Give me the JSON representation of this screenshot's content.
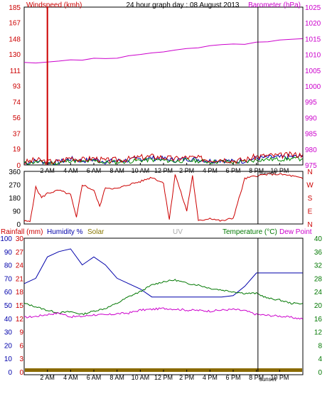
{
  "title": "24 hour graph day : 08 August 2013",
  "x_ticks": [
    "2 AM",
    "4 AM",
    "6 AM",
    "8 AM",
    "10 AM",
    "12 PM",
    "2 PM",
    "4 PM",
    "6 PM",
    "8 PM",
    "10 PM"
  ],
  "sunset_label": "sunset",
  "colors": {
    "wind": "#cc0000",
    "wind_gust": "#0000aa",
    "wind_avg": "#008800",
    "barometer": "#cc00cc",
    "direction": "#cc0000",
    "rain": "#cc0000",
    "humidity": "#0000aa",
    "solar": "#887700",
    "uv": "#aaaaaa",
    "temperature": "#007700",
    "dewpoint": "#cc00cc",
    "rain_bar": "#8a6a00"
  },
  "chart_data": [
    {
      "type": "line",
      "left_label": "Windspeed (kmh)",
      "right_label": "Barometer (hPa)",
      "left_ticks": [
        "185",
        "167",
        "148",
        "130",
        "111",
        "93",
        "74",
        "56",
        "37",
        "19",
        "0"
      ],
      "right_ticks": [
        "1025",
        "1020",
        "1015",
        "1010",
        "1005",
        "1000",
        "995",
        "990",
        "985",
        "980",
        "975"
      ],
      "ylim_left": [
        0,
        185
      ],
      "ylim_right": [
        975,
        1025
      ],
      "x": [
        "00:00",
        "01:00",
        "02:00",
        "03:00",
        "04:00",
        "05:00",
        "06:00",
        "07:00",
        "08:00",
        "09:00",
        "10:00",
        "11:00",
        "12:00",
        "13:00",
        "14:00",
        "15:00",
        "16:00",
        "17:00",
        "18:00",
        "19:00",
        "20:00",
        "21:00",
        "22:00",
        "23:00",
        "23:59"
      ],
      "series": [
        {
          "name": "Windspeed",
          "values": [
            3,
            6,
            4,
            4,
            9,
            6,
            8,
            5,
            6,
            7,
            9,
            10,
            9,
            7,
            9,
            8,
            6,
            7,
            5,
            6,
            10,
            11,
            11,
            12,
            12
          ]
        },
        {
          "name": "Barometer",
          "values": [
            1007.5,
            1007.3,
            1007.6,
            1007.9,
            1008.3,
            1008.2,
            1008.8,
            1008.7,
            1008.8,
            1009.6,
            1010.0,
            1010.5,
            1010.8,
            1011.4,
            1011.9,
            1012.1,
            1012.8,
            1013.1,
            1013.3,
            1013.2,
            1013.9,
            1014.0,
            1014.6,
            1014.8,
            1015.0
          ]
        }
      ],
      "gust_spike": {
        "x": "02:00",
        "y": 185
      }
    },
    {
      "type": "line",
      "left_ticks": [
        "360",
        "270",
        "180",
        "90",
        "0"
      ],
      "right_ticks": [
        "N",
        "W",
        "S",
        "E",
        "N"
      ],
      "ylim": [
        0,
        360
      ],
      "x": [
        "00:00",
        "00:30",
        "01:00",
        "01:30",
        "02:00",
        "03:00",
        "04:00",
        "04:30",
        "05:00",
        "06:00",
        "06:30",
        "07:00",
        "08:00",
        "09:00",
        "10:00",
        "11:00",
        "12:00",
        "12:30",
        "13:00",
        "14:00",
        "14:30",
        "15:00",
        "16:00",
        "17:00",
        "18:00",
        "19:00",
        "20:00",
        "21:00",
        "22:00",
        "23:00",
        "23:59"
      ],
      "series": [
        {
          "name": "Wind direction",
          "values": [
            20,
            15,
            250,
            180,
            210,
            230,
            200,
            40,
            270,
            230,
            120,
            250,
            240,
            270,
            290,
            320,
            280,
            30,
            340,
            90,
            330,
            20,
            40,
            20,
            40,
            310,
            330,
            340,
            340,
            330,
            310
          ]
        }
      ]
    },
    {
      "type": "line",
      "left_label_1": "Rainfall (mm)",
      "left_label_2": "Humidity %",
      "solar_label": "Solar",
      "uv_label": "UV",
      "right_label": "Temperature (°C)",
      "dew_label": "Dew Point",
      "rain_ticks": [
        "30",
        "27",
        "24",
        "21",
        "18",
        "15",
        "12",
        "9",
        "6",
        "3",
        "0"
      ],
      "humidity_ticks": [
        "100",
        "90",
        "80",
        "70",
        "60",
        "50",
        "40",
        "30",
        "20",
        "10",
        "0"
      ],
      "temp_ticks": [
        "40",
        "36",
        "32",
        "28",
        "24",
        "20",
        "16",
        "12",
        "8",
        "4",
        "0"
      ],
      "ylim_humidity": [
        0,
        100
      ],
      "ylim_temp": [
        0,
        40
      ],
      "x": [
        "00:00",
        "01:00",
        "02:00",
        "03:00",
        "04:00",
        "05:00",
        "06:00",
        "07:00",
        "08:00",
        "09:00",
        "10:00",
        "11:00",
        "12:00",
        "13:00",
        "14:00",
        "15:00",
        "16:00",
        "17:00",
        "18:00",
        "19:00",
        "20:00",
        "21:00",
        "22:00",
        "23:00",
        "23:59"
      ],
      "series": [
        {
          "name": "Humidity",
          "values": [
            66,
            70,
            86,
            90,
            92,
            80,
            86,
            80,
            70,
            66,
            62,
            56,
            56,
            56,
            56,
            56,
            56,
            56,
            57,
            64,
            74,
            74,
            74,
            74,
            74
          ]
        },
        {
          "name": "Temperature",
          "values": [
            20.5,
            19.5,
            18.4,
            17.7,
            18.0,
            17.2,
            18.2,
            19.0,
            20.5,
            22.5,
            24.0,
            26.0,
            27.0,
            27.5,
            26.5,
            26.0,
            25.0,
            24.5,
            24.0,
            23.5,
            23.5,
            22.0,
            21.5,
            20.5,
            20.5
          ]
        },
        {
          "name": "Dew Point",
          "values": [
            16.3,
            16.6,
            17.2,
            17.6,
            16.5,
            16.6,
            17.1,
            17.0,
            17.4,
            17.6,
            18.5,
            18.7,
            19.0,
            18.8,
            18.5,
            18.4,
            18.2,
            18.5,
            18.7,
            18.3,
            17.2,
            16.9,
            16.7,
            16.3,
            15.8
          ]
        },
        {
          "name": "Rainfall",
          "values": [
            0,
            0,
            0,
            0,
            0,
            0,
            0,
            0,
            0,
            0,
            0,
            0,
            0,
            0,
            0,
            0,
            0,
            0,
            0,
            0,
            0,
            0,
            0,
            0,
            0
          ]
        }
      ]
    }
  ]
}
